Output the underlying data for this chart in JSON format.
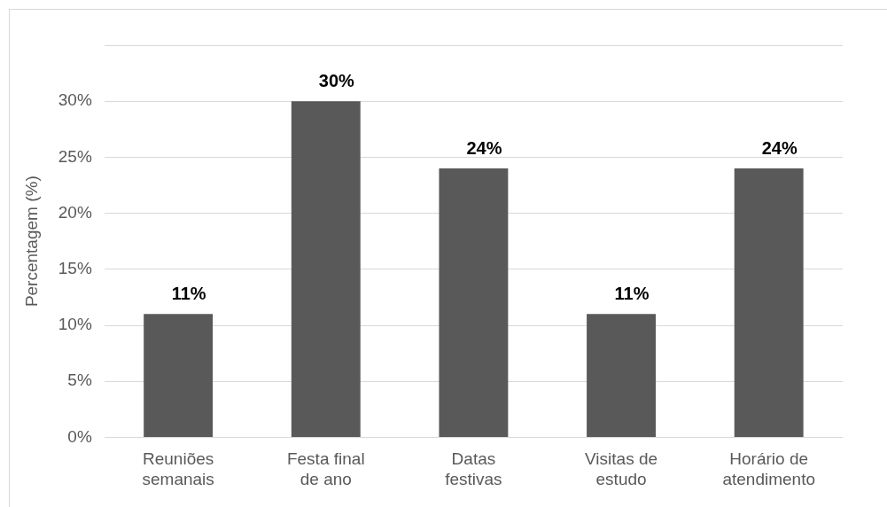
{
  "chart_data": {
    "type": "bar",
    "ylabel": "Percentagem (%)",
    "categories": [
      "Reuniões semanais",
      "Festa final de ano",
      "Datas festivas",
      "Visitas de estudo",
      "Horário de atendimento"
    ],
    "values": [
      11,
      30,
      24,
      11,
      24
    ],
    "value_labels": [
      "11%",
      "30%",
      "24%",
      "11%",
      "24%"
    ],
    "color": "#595959",
    "ylim": [
      0,
      35
    ],
    "yticks": [
      {
        "value": 0,
        "label": "0%"
      },
      {
        "value": 5,
        "label": "5%"
      },
      {
        "value": 10,
        "label": "10%"
      },
      {
        "value": 15,
        "label": "15%"
      },
      {
        "value": 20,
        "label": "20%"
      },
      {
        "value": 25,
        "label": "25%"
      },
      {
        "value": 30,
        "label": "30%"
      },
      {
        "value": 35,
        "label": null
      }
    ],
    "grid": "y"
  }
}
